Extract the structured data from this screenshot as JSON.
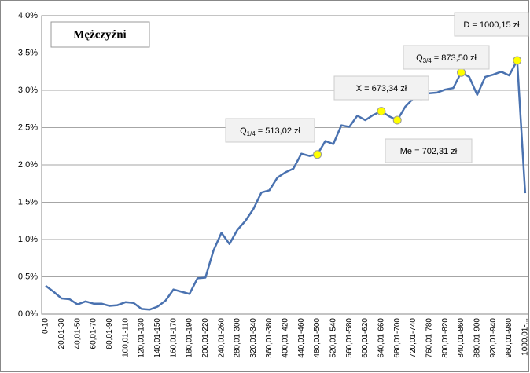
{
  "chart_data": {
    "type": "line",
    "title": "Mężczyźni",
    "categories": [
      "0-10",
      null,
      "20,01-30",
      null,
      "40,01-50",
      null,
      "60,01-70",
      null,
      "80,01-90",
      null,
      "100,01-110",
      null,
      "120,01-130",
      null,
      "140,01-150",
      null,
      "160,01-170",
      null,
      "180,01-190",
      null,
      "200,01-220",
      null,
      "240,01-260",
      null,
      "280,01-300",
      null,
      "320,01-340",
      null,
      "360,01-380",
      null,
      "400,01-420",
      null,
      "440,01-460",
      null,
      "480,01-500",
      null,
      "520,01-540",
      null,
      "560,01-580",
      null,
      "600,01-620",
      null,
      "640,01-660",
      null,
      "680,01-700",
      null,
      "720,01-740",
      null,
      "760,01-780",
      null,
      "800,01-820",
      null,
      "840,01-860",
      null,
      "880,01-900",
      null,
      "920,01-940",
      null,
      "960,01-980",
      null,
      "1000,01-..."
    ],
    "series": [
      {
        "color": "#4a72b0",
        "values": [
          0.38,
          0.3,
          0.21,
          0.2,
          0.13,
          0.17,
          0.14,
          0.14,
          0.11,
          0.12,
          0.16,
          0.15,
          0.07,
          0.06,
          0.1,
          0.18,
          0.33,
          0.3,
          0.27,
          0.48,
          0.49,
          0.85,
          1.09,
          0.94,
          1.13,
          1.25,
          1.41,
          1.63,
          1.66,
          1.83,
          1.9,
          1.95,
          2.15,
          2.12,
          2.14,
          2.32,
          2.28,
          2.53,
          2.51,
          2.66,
          2.6,
          2.67,
          2.72,
          2.65,
          2.6,
          2.78,
          2.89,
          2.88,
          2.96,
          2.97,
          3.01,
          3.03,
          3.24,
          3.18,
          2.94,
          3.18,
          3.21,
          3.25,
          3.2,
          3.4,
          1.62
        ]
      },
      {
        "color": "#ffff00",
        "values": [
          null,
          null,
          null,
          null,
          null,
          null,
          null,
          null,
          null,
          null,
          null,
          null,
          null,
          null,
          null,
          null,
          null,
          null,
          null,
          null,
          null,
          null,
          null,
          null,
          null,
          null,
          null,
          null,
          null,
          null,
          null,
          null,
          null,
          null,
          2.14,
          null,
          null,
          null,
          null,
          null,
          null,
          null,
          2.72,
          null,
          2.6,
          null,
          null,
          null,
          null,
          null,
          null,
          null,
          3.24,
          null,
          null,
          null,
          null,
          null,
          null,
          3.4,
          null
        ]
      }
    ],
    "ylim": [
      0,
      4
    ],
    "yticks": [
      {
        "value": 0,
        "label": "0,0%"
      },
      {
        "value": 0.5,
        "label": "0,5%"
      },
      {
        "value": 1,
        "label": "1,0%"
      },
      {
        "value": 1.5,
        "label": "1,5%"
      },
      {
        "value": 2,
        "label": "2,0%"
      },
      {
        "value": 2.5,
        "label": "2,5%"
      },
      {
        "value": 3,
        "label": "3,0%"
      },
      {
        "value": 3.5,
        "label": "3,5%"
      },
      {
        "value": 4,
        "label": "4,0%"
      }
    ],
    "grid": true,
    "annotations": [
      {
        "text": "D = 1000,15 zł"
      },
      {
        "base": "Q",
        "sub": "3/4",
        "text": " = 873,50 zł"
      },
      {
        "text": "X = 673,34 zł"
      },
      {
        "base": "Q",
        "sub": "1/4",
        "text": " = 513,02 zł"
      },
      {
        "text": "Me = 702,31 zł"
      }
    ]
  }
}
